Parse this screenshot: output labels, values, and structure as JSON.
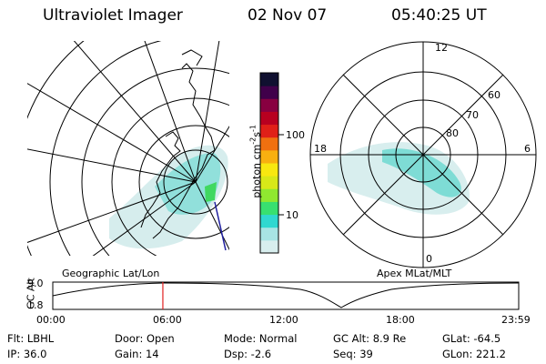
{
  "header": {
    "instrument": "Ultraviolet Imager",
    "date": "02 Nov 07",
    "time": "05:40:25 UT"
  },
  "left_map": {
    "label": "Geographic Lat/Lon"
  },
  "right_map": {
    "label": "Apex MLat/MLT",
    "mlt_labels": [
      "12",
      "18",
      "6",
      "0"
    ],
    "lat_labels": [
      "60",
      "70",
      "80"
    ]
  },
  "colorbar": {
    "unit_label": "photon cm",
    "unit_sup1": "-2",
    "unit_mid": "s",
    "unit_sup2": "-1",
    "ticks": [
      "100",
      "10"
    ],
    "colors": [
      "#d8eeee",
      "#a8e4e4",
      "#30d8d0",
      "#38e070",
      "#90e830",
      "#d8e818",
      "#f8e810",
      "#f8b010",
      "#f07010",
      "#e02018",
      "#b80020",
      "#880040",
      "#40004a",
      "#101030"
    ]
  },
  "altitude_plot": {
    "axis_label": "GC Alt",
    "y_ticks": [
      "9.0",
      "1.8"
    ],
    "x_ticks": [
      "00:00",
      "06:00",
      "12:00",
      "18:00",
      "23:59"
    ],
    "current_time_marker_hours": 5.67,
    "marker_color": "#e02020"
  },
  "info": {
    "filter": "Flt: LBHL",
    "ip": "IP: 36.0",
    "door": "Door: Open",
    "gain": "Gain: 14",
    "mode": "Mode: Normal",
    "dsp": "Dsp:    -2.6",
    "gc_alt": "GC Alt: 8.9 Re",
    "seq": "Seq: 39",
    "glat": "GLat: -64.5",
    "glon": "GLon: 221.2"
  }
}
